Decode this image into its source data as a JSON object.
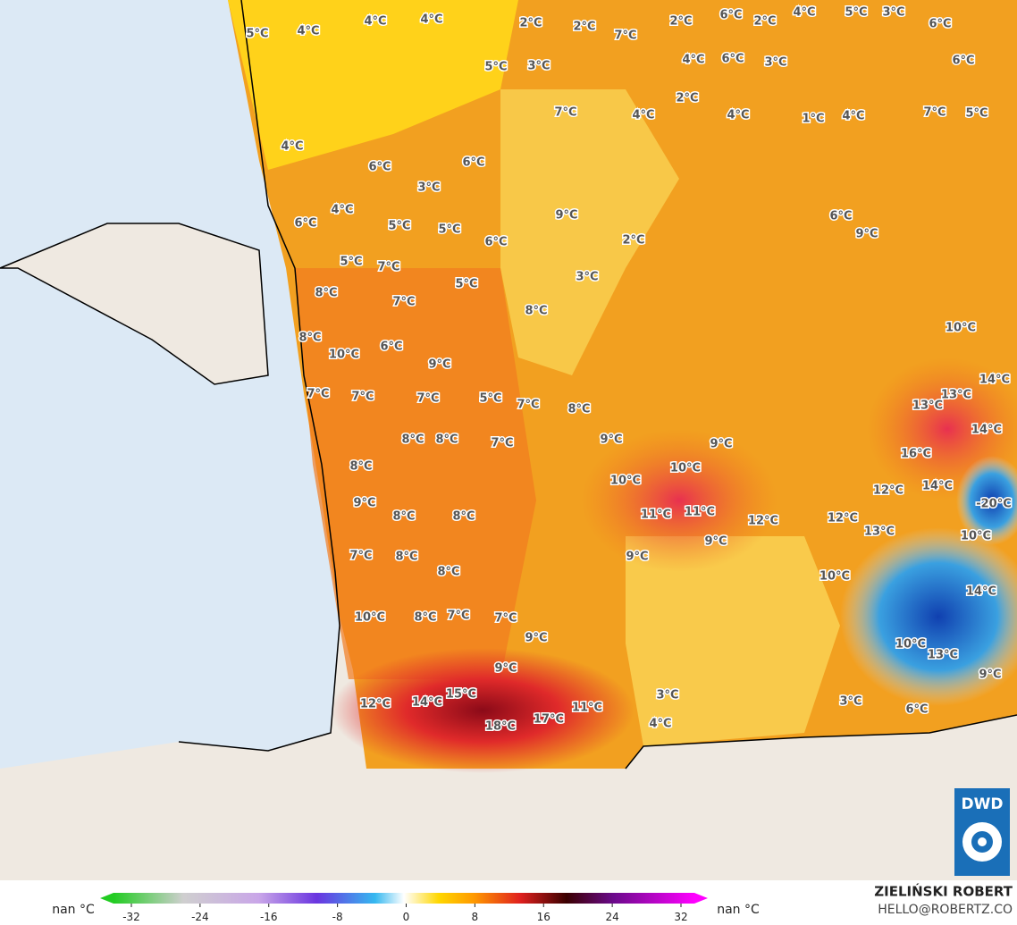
{
  "map": {
    "labels": [
      "4°C",
      "4°C",
      "5°C",
      "4°C",
      "2°C",
      "2°C",
      "2°C",
      "6°C",
      "2°C",
      "4°C",
      "5°C",
      "3°C",
      "6°C",
      "7°C",
      "5°C",
      "3°C",
      "4°C",
      "6°C",
      "3°C",
      "6°C",
      "2°C",
      "7°C",
      "4°C",
      "4°C",
      "1°C",
      "4°C",
      "7°C",
      "5°C",
      "4°C",
      "6°C",
      "6°C",
      "3°C",
      "4°C",
      "6°C",
      "5°C",
      "9°C",
      "5°C",
      "6°C",
      "2°C",
      "6°C",
      "9°C",
      "5°C",
      "7°C",
      "8°C",
      "7°C",
      "5°C",
      "3°C",
      "8°C",
      "8°C",
      "10°C",
      "6°C",
      "9°C",
      "10°C",
      "14°C",
      "13°C",
      "13°C",
      "14°C",
      "7°C",
      "7°C",
      "7°C",
      "5°C",
      "7°C",
      "8°C",
      "8°C",
      "8°C",
      "7°C",
      "9°C",
      "9°C",
      "8°C",
      "10°C",
      "16°C",
      "10°C",
      "12°C",
      "14°C",
      "11°C",
      "11°C",
      "12°C",
      "12°C",
      "-20°C",
      "10°C",
      "13°C",
      "9°C",
      "8°C",
      "8°C",
      "7°C",
      "8°C",
      "8°C",
      "9°C",
      "9°C",
      "14°C",
      "10°C",
      "10°C",
      "8°C",
      "7°C",
      "7°C",
      "9°C",
      "13°C",
      "10°C",
      "9°C",
      "12°C",
      "14°C",
      "15°C",
      "18°C",
      "17°C",
      "11°C",
      "9°C",
      "4°C",
      "3°C",
      "6°C",
      "3°C"
    ]
  },
  "colorbar": {
    "left_label": "nan °C",
    "right_label": "nan °C",
    "ticks": [
      -32,
      -24,
      -16,
      -8,
      0,
      8,
      16,
      24,
      32
    ]
  },
  "credits": {
    "author": "ZIELIŃSKI ROBERT",
    "email": "HELLO@ROBERTZ.CO",
    "logo": "DWD"
  }
}
